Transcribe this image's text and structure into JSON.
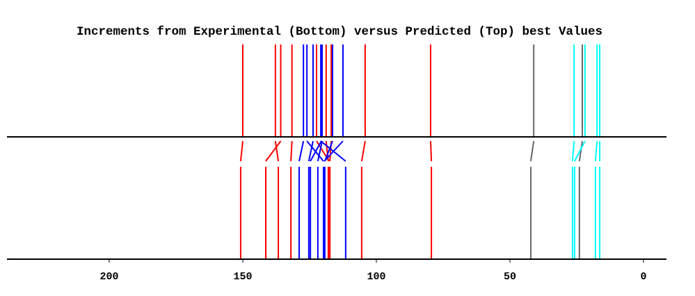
{
  "chart_data": {
    "type": "line",
    "title": "Increments from Experimental (Bottom) versus Predicted (Top) best Values",
    "xlabel": "",
    "ylabel": "",
    "xlim": [
      240,
      -8
    ],
    "x_reversed": true,
    "xticks": [
      200,
      150,
      100,
      50,
      0
    ],
    "xtick_labels": [
      "200",
      "150",
      "100",
      "50",
      "0"
    ],
    "grid": false,
    "colors": {
      "red": "#ff0000",
      "blue": "#0000ff",
      "gray": "#666666",
      "cyan": "#00ffff"
    },
    "series": [
      {
        "name": "red",
        "color": "red",
        "pairs": [
          {
            "predicted": 150.0,
            "experimental": 150.8
          },
          {
            "predicted": 137.8,
            "experimental": 136.7
          },
          {
            "predicted": 135.8,
            "experimental": 141.4
          },
          {
            "predicted": 131.6,
            "experimental": 132.0
          },
          {
            "predicted": 122.4,
            "experimental": 117.7
          },
          {
            "predicted": 118.8,
            "experimental": 118.0
          },
          {
            "predicted": 116.9,
            "experimental": 117.4
          },
          {
            "predicted": 104.2,
            "experimental": 105.5
          },
          {
            "predicted": 79.7,
            "experimental": 79.4
          }
        ]
      },
      {
        "name": "blue",
        "color": "blue",
        "pairs": [
          {
            "predicted": 127.3,
            "experimental": 128.9
          },
          {
            "predicted": 126.0,
            "experimental": 119.8
          },
          {
            "predicted": 123.7,
            "experimental": 125.3
          },
          {
            "predicted": 120.8,
            "experimental": 111.5
          },
          {
            "predicted": 120.6,
            "experimental": 124.7
          },
          {
            "predicted": 120.3,
            "experimental": 121.9
          },
          {
            "predicted": 116.4,
            "experimental": 119.3
          },
          {
            "predicted": 112.5,
            "experimental": 119.5
          }
        ]
      },
      {
        "name": "gray",
        "color": "gray",
        "pairs": [
          {
            "predicted": 41.1,
            "experimental": 42.2
          },
          {
            "predicted": 22.9,
            "experimental": 24.0
          }
        ]
      },
      {
        "name": "cyan",
        "color": "cyan",
        "pairs": [
          {
            "predicted": 26.0,
            "experimental": 26.6
          },
          {
            "predicted": 21.9,
            "experimental": 25.8
          },
          {
            "predicted": 17.4,
            "experimental": 18.0
          },
          {
            "predicted": 16.4,
            "experimental": 16.4
          }
        ]
      }
    ]
  }
}
